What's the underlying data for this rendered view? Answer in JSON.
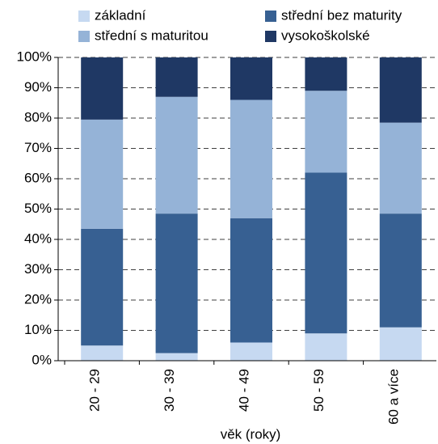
{
  "chart_data": {
    "type": "stacked_bar",
    "x_label": "věk (roky)",
    "categories": [
      "20 - 29",
      "30 - 39",
      "40 - 49",
      "50 - 59",
      "60 a více"
    ],
    "series": [
      {
        "name": "základní",
        "color": "#c6d9f1",
        "values": [
          5,
          2.5,
          6,
          9,
          11
        ]
      },
      {
        "name": "střední bez maturity",
        "color": "#376092",
        "values": [
          38.5,
          46,
          41,
          53,
          37.5
        ]
      },
      {
        "name": "střední s maturitou",
        "color": "#95b3d7",
        "values": [
          36,
          38.5,
          39,
          27,
          30
        ]
      },
      {
        "name": "vysokoškolské",
        "color": "#1f3864",
        "values": [
          20.5,
          13,
          14,
          11,
          21.5
        ]
      }
    ],
    "ylim": [
      0,
      100
    ],
    "yticks": [
      {
        "value": 0,
        "label": "0%"
      },
      {
        "value": 10,
        "label": "10%"
      },
      {
        "value": 20,
        "label": "20%"
      },
      {
        "value": 30,
        "label": "30%"
      },
      {
        "value": 40,
        "label": "40%"
      },
      {
        "value": 50,
        "label": "50%"
      },
      {
        "value": 60,
        "label": "60%"
      },
      {
        "value": 70,
        "label": "70%"
      },
      {
        "value": 80,
        "label": "80%"
      },
      {
        "value": 90,
        "label": "90%"
      },
      {
        "value": 100,
        "label": "100%"
      }
    ],
    "grid": true,
    "legend": "top"
  }
}
